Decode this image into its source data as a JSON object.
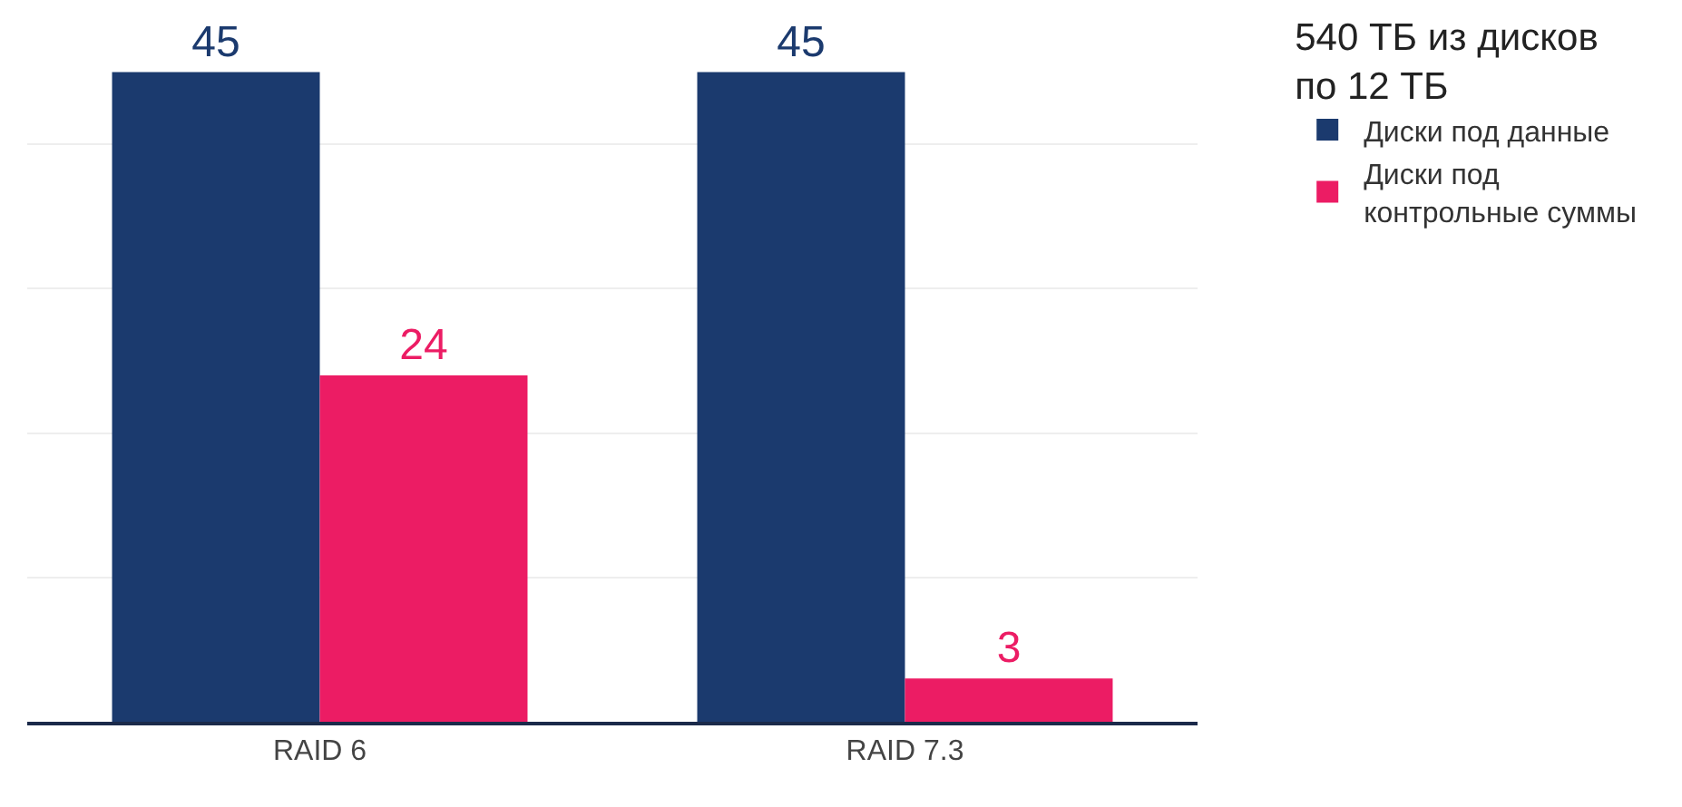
{
  "chart_data": {
    "type": "bar",
    "legend_title": "540 ТБ из дисков\nпо 12 ТБ",
    "categories": [
      "RAID 6",
      "RAID 7.3"
    ],
    "series": [
      {
        "name": "Диски под данные",
        "color": "#1b3a6e",
        "values": [
          45,
          45
        ]
      },
      {
        "name": "Диски под\nконтрольные суммы",
        "color": "#ec1c64",
        "values": [
          24,
          3
        ]
      }
    ],
    "ylim": [
      0,
      50
    ],
    "yticks": [
      {
        "value": 0,
        "label": null
      },
      {
        "value": 10,
        "label": null
      },
      {
        "value": 20,
        "label": null
      },
      {
        "value": 30,
        "label": null
      },
      {
        "value": 40,
        "label": null
      },
      {
        "value": 50,
        "label": null
      }
    ],
    "grid": "y",
    "legend": "right",
    "data_labels": true,
    "tick_labels": "x"
  }
}
